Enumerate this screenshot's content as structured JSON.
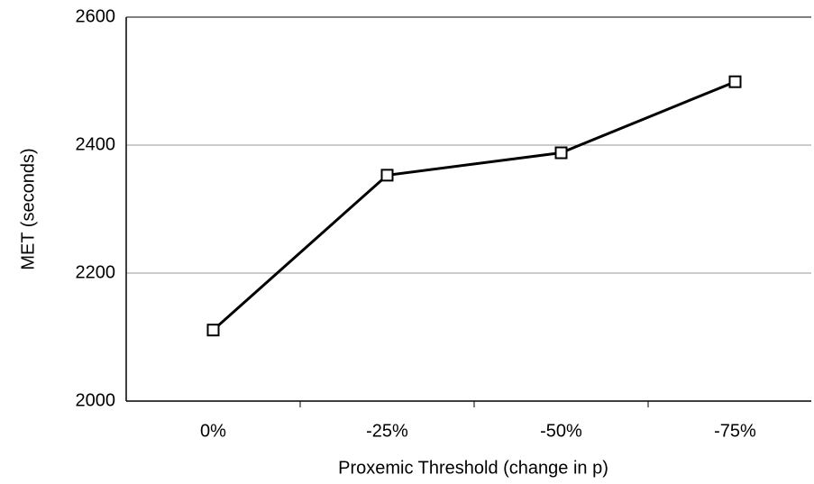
{
  "chart_data": {
    "type": "line",
    "x_label": "Proxemic Threshold (change in p)",
    "y_label": "MET (seconds)",
    "categories": [
      "0%",
      "-25%",
      "-50%",
      "-75%"
    ],
    "values": [
      2111,
      2353,
      2388,
      2499
    ],
    "color": "#000000",
    "ylim": [
      2000,
      2600
    ],
    "yticks": [
      2000,
      2200,
      2400,
      2600
    ],
    "grid": true
  }
}
